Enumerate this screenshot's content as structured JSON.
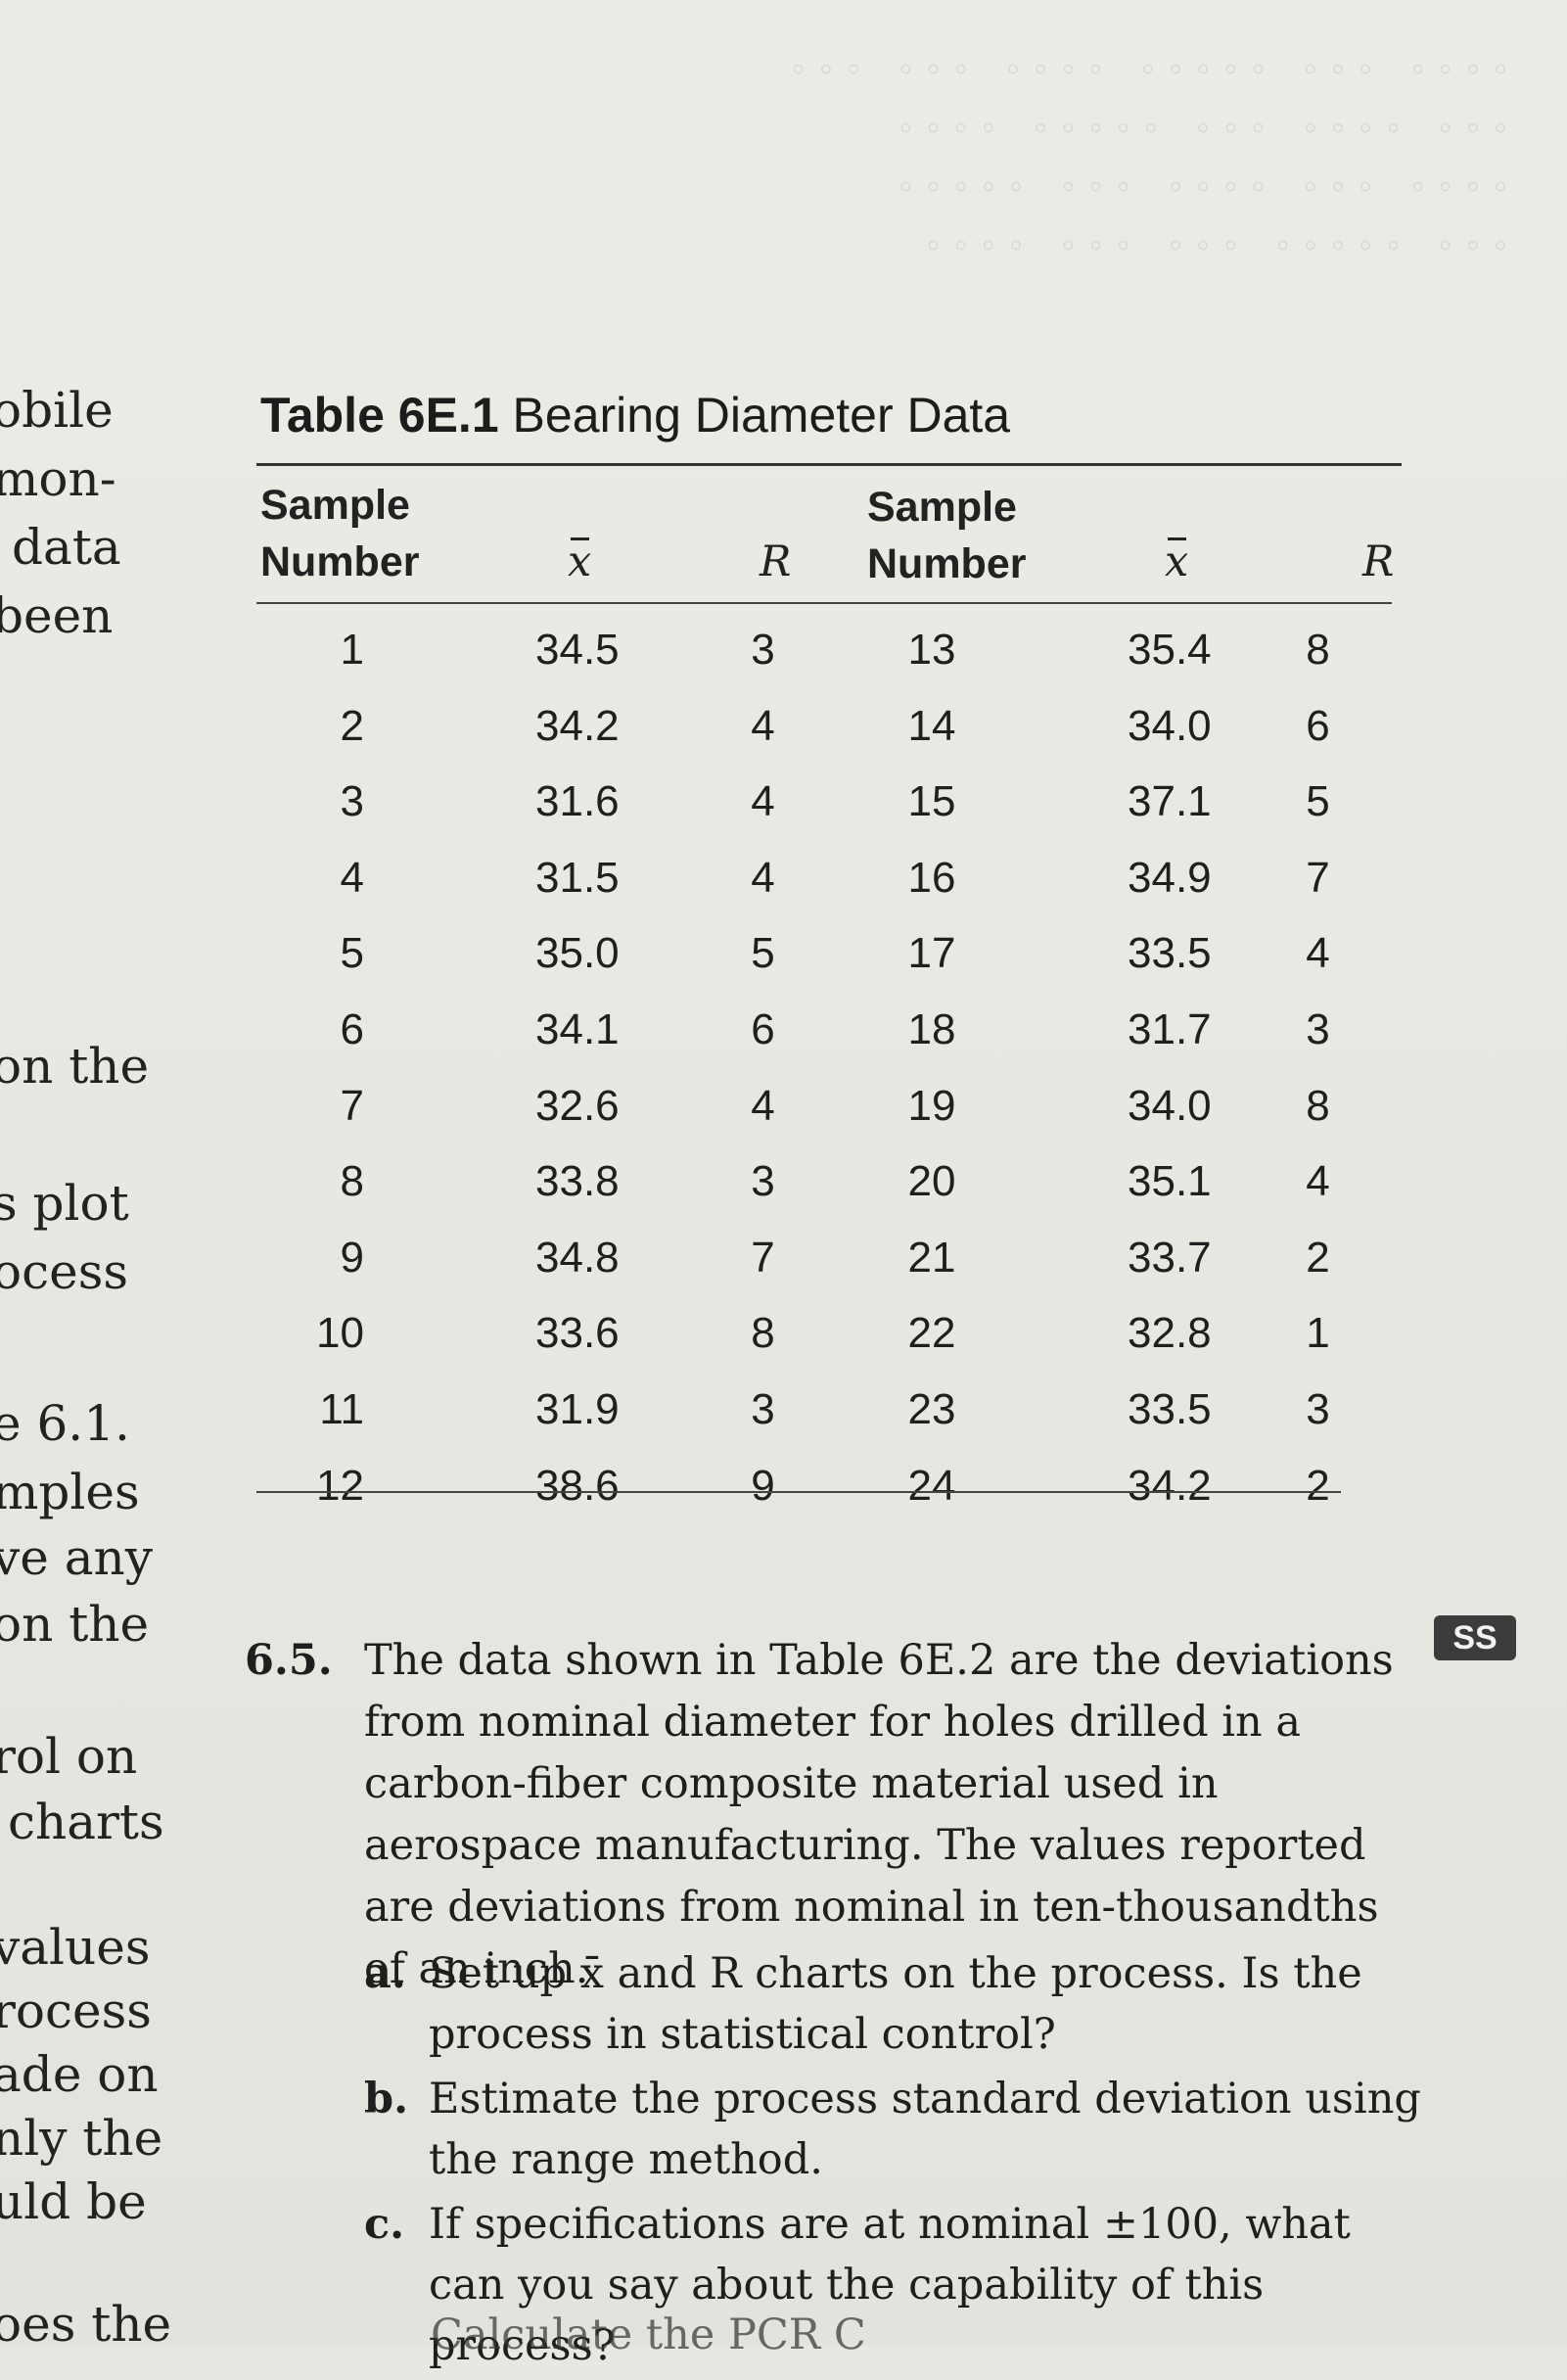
{
  "margin_fragments": [
    {
      "text": "obile"
    },
    {
      "text": "mon-"
    },
    {
      "text": "data"
    },
    {
      "text": "been"
    },
    {
      "text": "on the"
    },
    {
      "text": "s plot"
    },
    {
      "text": "ocess"
    },
    {
      "text": "e 6.1."
    },
    {
      "text": "mples"
    },
    {
      "text": "ve any"
    },
    {
      "text": "on the"
    },
    {
      "text": "rol on"
    },
    {
      "text": "charts"
    },
    {
      "text": "values"
    },
    {
      "text": "rocess"
    },
    {
      "text": "ade on"
    },
    {
      "text": "nly the"
    },
    {
      "text": "uld be"
    },
    {
      "text": "oes the"
    }
  ],
  "table": {
    "number": "Table 6E.1",
    "title": "Bearing Diameter Data",
    "headers": {
      "sample_line1": "Sample",
      "sample_line2": "Number",
      "xbar": "x",
      "r": "R"
    },
    "rows": [
      {
        "s1": "1",
        "x1": "34.5",
        "r1": "3",
        "s2": "13",
        "x2": "35.4",
        "r2": "8"
      },
      {
        "s1": "2",
        "x1": "34.2",
        "r1": "4",
        "s2": "14",
        "x2": "34.0",
        "r2": "6"
      },
      {
        "s1": "3",
        "x1": "31.6",
        "r1": "4",
        "s2": "15",
        "x2": "37.1",
        "r2": "5"
      },
      {
        "s1": "4",
        "x1": "31.5",
        "r1": "4",
        "s2": "16",
        "x2": "34.9",
        "r2": "7"
      },
      {
        "s1": "5",
        "x1": "35.0",
        "r1": "5",
        "s2": "17",
        "x2": "33.5",
        "r2": "4"
      },
      {
        "s1": "6",
        "x1": "34.1",
        "r1": "6",
        "s2": "18",
        "x2": "31.7",
        "r2": "3"
      },
      {
        "s1": "7",
        "x1": "32.6",
        "r1": "4",
        "s2": "19",
        "x2": "34.0",
        "r2": "8"
      },
      {
        "s1": "8",
        "x1": "33.8",
        "r1": "3",
        "s2": "20",
        "x2": "35.1",
        "r2": "4"
      },
      {
        "s1": "9",
        "x1": "34.8",
        "r1": "7",
        "s2": "21",
        "x2": "33.7",
        "r2": "2"
      },
      {
        "s1": "10",
        "x1": "33.6",
        "r1": "8",
        "s2": "22",
        "x2": "32.8",
        "r2": "1"
      },
      {
        "s1": "11",
        "x1": "31.9",
        "r1": "3",
        "s2": "23",
        "x2": "33.5",
        "r2": "3"
      },
      {
        "s1": "12",
        "x1": "38.6",
        "r1": "9",
        "s2": "24",
        "x2": "34.2",
        "r2": "2"
      }
    ]
  },
  "problem": {
    "number": "6.5.",
    "badge": "SS",
    "text": "The data shown in Table 6E.2 are the deviations from nominal diameter for holes drilled in a carbon-fiber composite material used in aerospace manufacturing. The values reported are deviations from nominal in ten-thousandths of an inch.",
    "parts": [
      {
        "label": "a.",
        "text": "Set up x̄ and R charts on the process. Is the process in statistical control?"
      },
      {
        "label": "b.",
        "text": "Estimate the process standard deviation using the range method."
      },
      {
        "label": "c.",
        "text": "If specifications are at nominal ±100, what can you say about the capability of this process?"
      }
    ],
    "cut_line": "Calculate the PCR C"
  }
}
